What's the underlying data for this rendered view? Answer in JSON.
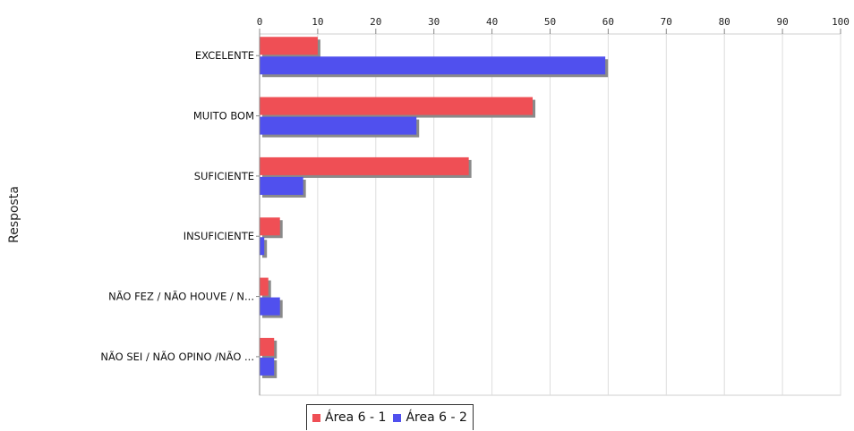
{
  "chart_data": {
    "type": "bar",
    "orientation": "horizontal",
    "title": "",
    "xlabel": "",
    "ylabel": "Resposta",
    "xlim": [
      0,
      100
    ],
    "x_ticks": [
      0,
      10,
      20,
      30,
      40,
      50,
      60,
      70,
      80,
      90,
      100
    ],
    "grid": true,
    "legend_position": "bottom",
    "categories": [
      "EXCELENTE",
      "MUITO BOM",
      "SUFICIENTE",
      "INSUFICIENTE",
      "NÃO FEZ / NÃO HOUVE / N...",
      "NÃO SEI / NÃO OPINO /NÃO ..."
    ],
    "series": [
      {
        "name": "Área 6 - 1",
        "color": "#ef4f55",
        "values": [
          10,
          47,
          36,
          3.5,
          1.5,
          2.5
        ]
      },
      {
        "name": "Área 6 - 2",
        "color": "#5050ee",
        "values": [
          59.5,
          27,
          7.5,
          0.8,
          3.5,
          2.5
        ]
      }
    ]
  }
}
